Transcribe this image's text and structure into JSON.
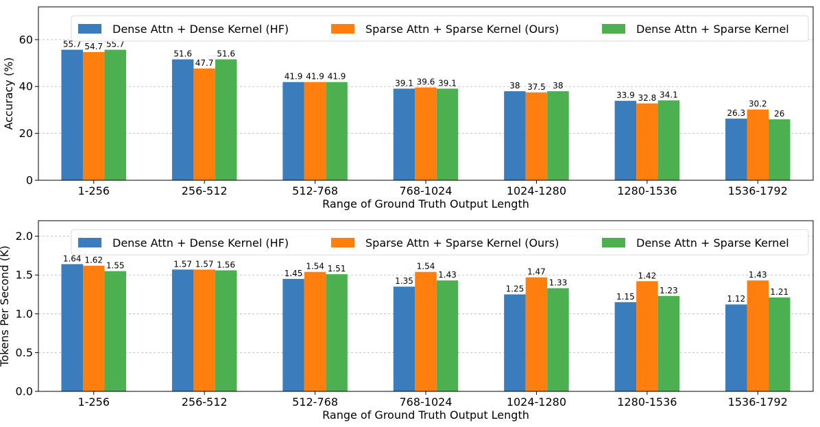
{
  "chart_data": [
    {
      "type": "bar",
      "categories": [
        "1-256",
        "256-512",
        "512-768",
        "768-1024",
        "1024-1280",
        "1280-1536",
        "1536-1792"
      ],
      "series": [
        {
          "name": "Dense Attn + Dense Kernel (HF)",
          "color": "#3a7cbc",
          "values": [
            55.7,
            51.6,
            41.9,
            39.1,
            38,
            33.9,
            26.3
          ],
          "labels": [
            "55.7",
            "51.6",
            "41.9",
            "39.1",
            "38",
            "33.9",
            "26.3"
          ]
        },
        {
          "name": "Sparse Attn + Sparse Kernel (Ours)",
          "color": "#ff7f0e",
          "values": [
            54.7,
            47.7,
            41.9,
            39.6,
            37.5,
            32.8,
            30.2
          ],
          "labels": [
            "54.7",
            "47.7",
            "41.9",
            "39.6",
            "37.5",
            "32.8",
            "30.2"
          ]
        },
        {
          "name": "Dense Attn + Sparse Kernel",
          "color": "#4caf50",
          "values": [
            55.7,
            51.6,
            41.9,
            39.1,
            38,
            34.1,
            26
          ],
          "labels": [
            "55.7",
            "51.6",
            "41.9",
            "39.1",
            "38",
            "34.1",
            "26"
          ]
        }
      ],
      "xlabel": "Range of Ground Truth Output Length",
      "ylabel": "Accuracy (%)",
      "ylim": [
        0,
        74
      ],
      "yticks": [
        0,
        20,
        40,
        60
      ],
      "ytick_labels": [
        "0",
        "20",
        "40",
        "60"
      ],
      "grid": true,
      "legend_position": "top"
    },
    {
      "type": "bar",
      "categories": [
        "1-256",
        "256-512",
        "512-768",
        "768-1024",
        "1024-1280",
        "1280-1536",
        "1536-1792"
      ],
      "series": [
        {
          "name": "Dense Attn + Dense Kernel (HF)",
          "color": "#3a7cbc",
          "values": [
            1.64,
            1.57,
            1.45,
            1.35,
            1.25,
            1.15,
            1.12
          ],
          "labels": [
            "1.64",
            "1.57",
            "1.45",
            "1.35",
            "1.25",
            "1.15",
            "1.12"
          ]
        },
        {
          "name": "Sparse Attn + Sparse Kernel (Ours)",
          "color": "#ff7f0e",
          "values": [
            1.62,
            1.57,
            1.54,
            1.54,
            1.47,
            1.42,
            1.43
          ],
          "labels": [
            "1.62",
            "1.57",
            "1.54",
            "1.54",
            "1.47",
            "1.42",
            "1.43"
          ]
        },
        {
          "name": "Dense Attn + Sparse Kernel",
          "color": "#4caf50",
          "values": [
            1.55,
            1.56,
            1.51,
            1.43,
            1.33,
            1.23,
            1.21
          ],
          "labels": [
            "1.55",
            "1.56",
            "1.51",
            "1.43",
            "1.33",
            "1.23",
            "1.21"
          ]
        }
      ],
      "xlabel": "Range of Ground Truth Output Length",
      "ylabel": "Tokens Per Second (K)",
      "ylim": [
        0,
        2.2
      ],
      "yticks": [
        0,
        0.5,
        1.0,
        1.5,
        2.0
      ],
      "ytick_labels": [
        "0.0",
        "0.5",
        "1.0",
        "1.5",
        "2.0"
      ],
      "grid": true,
      "legend_position": "top"
    }
  ]
}
